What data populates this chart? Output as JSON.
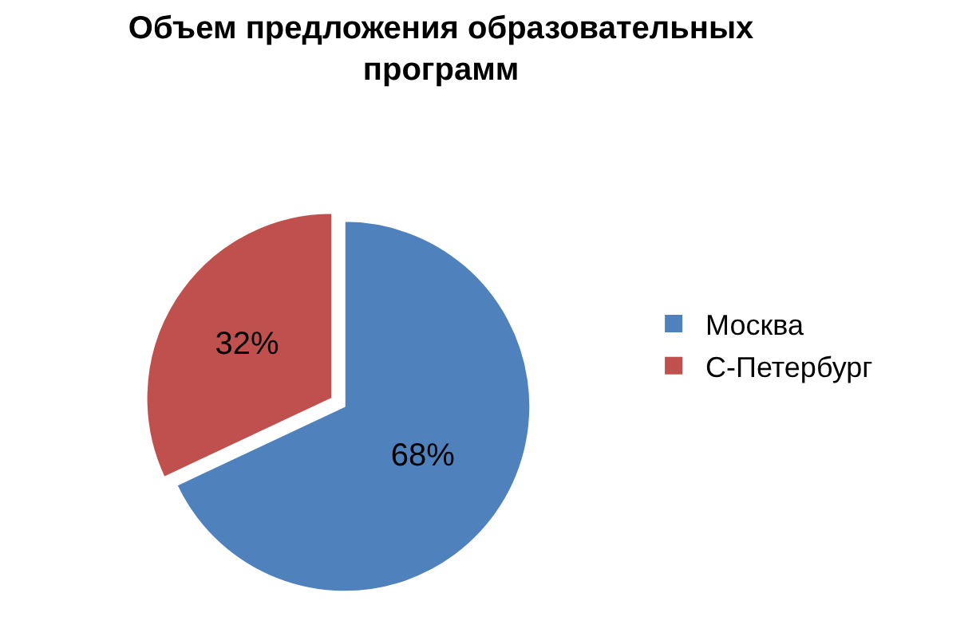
{
  "chart_data": {
    "type": "pie",
    "title": "Объем предложения образовательных программ",
    "categories": [
      "Москва",
      "С-Петербург"
    ],
    "values": [
      68,
      32
    ],
    "value_labels": [
      "68%",
      "32%"
    ],
    "colors": [
      "#4f81bd",
      "#c0504d"
    ],
    "legend": "right"
  }
}
